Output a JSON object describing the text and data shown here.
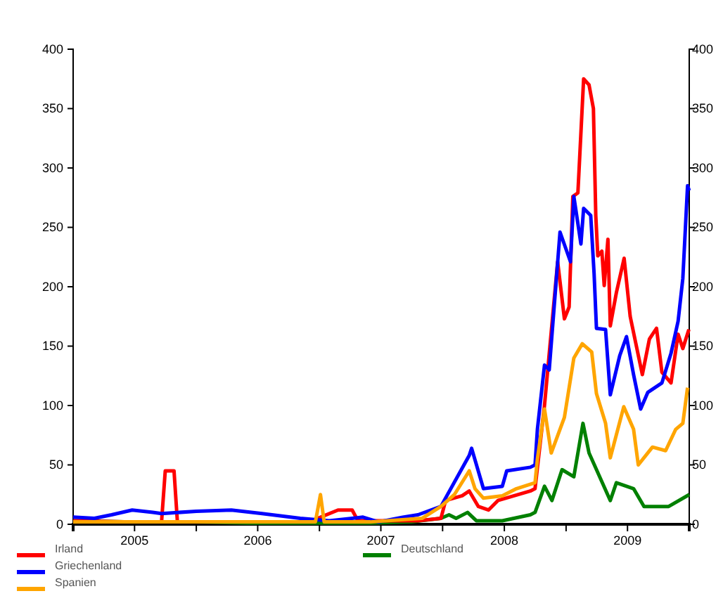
{
  "chart_data": {
    "type": "line",
    "xlim": [
      "2005-01-01",
      "2010-01-01"
    ],
    "xticks": [
      {
        "value": "2005-01-01",
        "label": null
      },
      {
        "value": "2005-07-02",
        "label": "2005"
      },
      {
        "value": "2006-01-01",
        "label": null
      },
      {
        "value": "2006-07-02",
        "label": "2006"
      },
      {
        "value": "2007-01-01",
        "label": null
      },
      {
        "value": "2007-07-02",
        "label": "2007"
      },
      {
        "value": "2008-01-01",
        "label": null
      },
      {
        "value": "2008-07-02",
        "label": "2008"
      },
      {
        "value": "2009-01-01",
        "label": null
      },
      {
        "value": "2009-07-02",
        "label": "2009"
      },
      {
        "value": "2010-01-01",
        "label": null
      }
    ],
    "ylim": [
      0,
      400
    ],
    "yticks": [
      0,
      50,
      100,
      150,
      200,
      250,
      300,
      350,
      400
    ],
    "y2lim": [
      0,
      400
    ],
    "y2ticks": [
      0,
      50,
      100,
      150,
      200,
      250,
      300,
      350,
      400
    ],
    "legend": "bottom",
    "grid": false,
    "marker": "none",
    "line_style": "solid",
    "series": [
      {
        "name": "Deutschland",
        "color": "#008000",
        "x": [
          "2005-01-01",
          "2005-06-01",
          "2006-01-01",
          "2006-06-01",
          "2007-01-01",
          "2007-06-01",
          "2007-10-01",
          "2007-12-27",
          "2008-01-20",
          "2008-02-10",
          "2008-03-15",
          "2008-04-10",
          "2008-06-26",
          "2008-09-17",
          "2008-10-01",
          "2008-10-29",
          "2008-11-20",
          "2008-12-20",
          "2009-01-24",
          "2009-02-20",
          "2009-03-10",
          "2009-05-12",
          "2009-05-30",
          "2009-07-20",
          "2009-08-20",
          "2009-11-01",
          "2010-01-01"
        ],
        "values": [
          3,
          2,
          2,
          1,
          1,
          1,
          2,
          5,
          8,
          5,
          10,
          3,
          3,
          8,
          10,
          32,
          20,
          46,
          40,
          85,
          60,
          20,
          35,
          30,
          15,
          15,
          25
        ]
      },
      {
        "name": "Irland",
        "color": "#ff0000",
        "x": [
          "2005-01-01",
          "2005-06-01",
          "2005-09-20",
          "2005-10-01",
          "2005-10-27",
          "2005-11-06",
          "2006-06-01",
          "2006-12-01",
          "2007-02-25",
          "2007-04-08",
          "2007-04-25",
          "2007-10-20",
          "2007-12-27",
          "2008-01-10",
          "2008-02-28",
          "2008-03-20",
          "2008-04-16",
          "2008-05-16",
          "2008-06-13",
          "2008-09-17",
          "2008-10-01",
          "2008-10-29",
          "2008-12-07",
          "2008-12-27",
          "2009-01-10",
          "2009-01-21",
          "2009-02-05",
          "2009-02-22",
          "2009-03-10",
          "2009-03-23",
          "2009-03-30",
          "2009-04-05",
          "2009-04-17",
          "2009-04-24",
          "2009-05-05",
          "2009-05-12",
          "2009-05-30",
          "2009-06-22",
          "2009-07-10",
          "2009-08-15",
          "2009-09-05",
          "2009-09-26",
          "2009-10-12",
          "2009-11-08",
          "2009-11-29",
          "2009-12-13",
          "2009-12-31"
        ],
        "values": [
          3,
          2,
          2,
          45,
          45,
          2,
          2,
          2,
          12,
          12,
          3,
          3,
          5,
          20,
          24,
          28,
          15,
          12,
          20,
          28,
          30,
          100,
          221,
          173,
          183,
          276,
          279,
          375,
          370,
          350,
          260,
          226,
          230,
          201,
          240,
          167,
          195,
          224,
          175,
          126,
          156,
          165,
          128,
          119,
          160,
          148,
          164
        ]
      },
      {
        "name": "Griechenland",
        "color": "#0000ff",
        "x": [
          "2005-01-01",
          "2005-03-05",
          "2005-04-25",
          "2005-06-25",
          "2005-08-25",
          "2005-09-20",
          "2006-01-01",
          "2006-04-15",
          "2006-07-15",
          "2006-11-05",
          "2007-01-30",
          "2007-05-10",
          "2007-06-25",
          "2007-09-05",
          "2007-10-20",
          "2007-12-27",
          "2008-03-20",
          "2008-03-27",
          "2008-05-01",
          "2008-06-26",
          "2008-07-09",
          "2008-09-17",
          "2008-10-01",
          "2008-10-08",
          "2008-10-29",
          "2008-11-12",
          "2008-12-14",
          "2009-01-14",
          "2009-01-24",
          "2009-02-14",
          "2009-02-22",
          "2009-03-15",
          "2009-03-25",
          "2009-04-01",
          "2009-04-28",
          "2009-05-12",
          "2009-06-09",
          "2009-06-29",
          "2009-07-20",
          "2009-08-10",
          "2009-08-31",
          "2009-10-12",
          "2009-11-08",
          "2009-11-29",
          "2009-12-13",
          "2009-12-27",
          "2010-01-01"
        ],
        "values": [
          6,
          5,
          8,
          12,
          10,
          9,
          11,
          12,
          9,
          5,
          3,
          6,
          2,
          6,
          8,
          15,
          58,
          64,
          30,
          32,
          45,
          48,
          50,
          80,
          134,
          130,
          246,
          221,
          276,
          236,
          266,
          260,
          211,
          165,
          164,
          109,
          142,
          158,
          126,
          97,
          111,
          119,
          144,
          171,
          207,
          285,
          281
        ]
      },
      {
        "name": "Spanien",
        "color": "#ffa500",
        "x": [
          "2005-01-01",
          "2005-06-01",
          "2006-01-01",
          "2006-06-01",
          "2006-12-20",
          "2007-01-04",
          "2007-01-15",
          "2007-06-01",
          "2007-11-01",
          "2007-12-27",
          "2008-02-05",
          "2008-03-20",
          "2008-04-06",
          "2008-05-01",
          "2008-06-26",
          "2008-08-07",
          "2008-10-01",
          "2008-10-08",
          "2008-10-29",
          "2008-11-18",
          "2008-12-27",
          "2009-01-24",
          "2009-02-18",
          "2009-03-18",
          "2009-04-01",
          "2009-04-28",
          "2009-05-12",
          "2009-06-21",
          "2009-07-20",
          "2009-08-03",
          "2009-09-14",
          "2009-10-23",
          "2009-11-22",
          "2009-12-13",
          "2009-12-27"
        ],
        "values": [
          2,
          2,
          2,
          2,
          2,
          25,
          2,
          2,
          5,
          15,
          25,
          45,
          30,
          22,
          24,
          30,
          35,
          55,
          97,
          60,
          90,
          140,
          152,
          145,
          110,
          85,
          56,
          99,
          80,
          50,
          65,
          62,
          80,
          85,
          115
        ]
      }
    ]
  }
}
